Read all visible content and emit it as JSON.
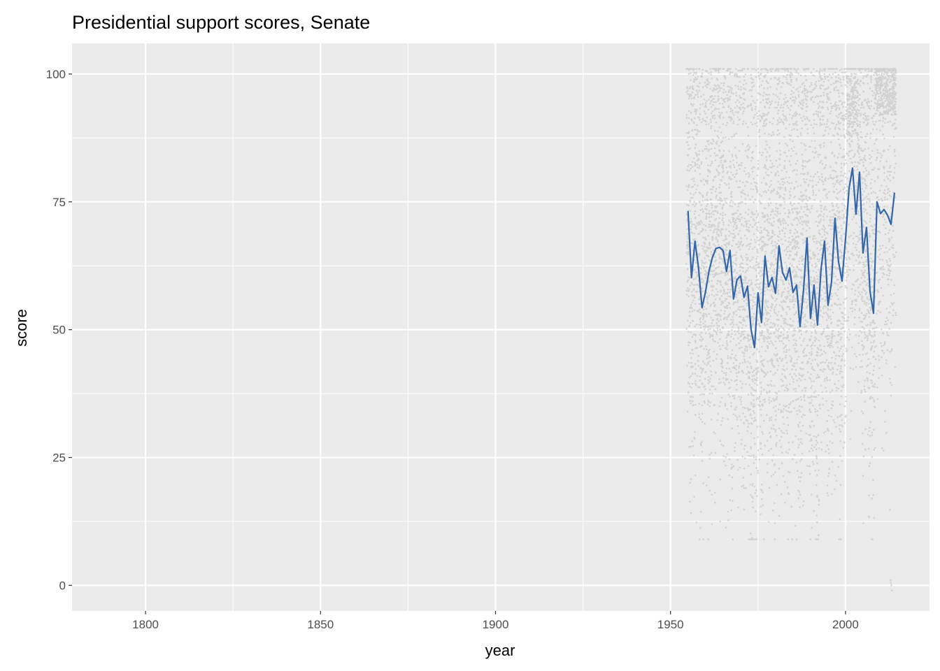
{
  "chart_data": {
    "type": "scatter",
    "title": "Presidential support scores, Senate",
    "xlabel": "year",
    "ylabel": "score",
    "xlim": [
      1779,
      2024
    ],
    "ylim": [
      -5,
      106
    ],
    "x_ticks": [
      1800,
      1850,
      1900,
      1950,
      2000
    ],
    "x_tick_labels": [
      "1800",
      "1850",
      "1900",
      "1950",
      "2000"
    ],
    "y_ticks": [
      0,
      25,
      50,
      75,
      100
    ],
    "y_tick_labels": [
      "0",
      "25",
      "50",
      "75",
      "100"
    ],
    "grid": true,
    "background": "#ebebeb",
    "colors": {
      "points": "#bdbdbd",
      "mean_line": "#3366aa",
      "grid": "#ffffff"
    },
    "points_summary": {
      "description_note": "Individual senator scores, one gray point per senator-year, spanning 1955-2014 with values roughly 0-100",
      "x_range": [
        1955,
        2014
      ],
      "y_range": [
        -1,
        101
      ]
    },
    "series": [
      {
        "x": [
          1955,
          1956,
          1957,
          1958,
          1959,
          1960,
          1961,
          1962,
          1963,
          1964,
          1965,
          1966,
          1967,
          1968,
          1969,
          1970,
          1971,
          1972,
          1973,
          1974,
          1975,
          1976,
          1977,
          1978,
          1979,
          1980,
          1981,
          1982,
          1983,
          1984,
          1985,
          1986,
          1987,
          1988,
          1989,
          1990,
          1991,
          1992,
          1993,
          1994,
          1995,
          1996,
          1997,
          1998,
          1999,
          2000,
          2001,
          2002,
          2003,
          2004,
          2005,
          2006,
          2007,
          2008,
          2009,
          2010,
          2011,
          2012,
          2013,
          2014
        ],
        "values": [
          73.2,
          60.2,
          67.3,
          62.1,
          54.3,
          57.4,
          61.5,
          64.2,
          65.9,
          66.1,
          65.5,
          61.4,
          65.5,
          56.0,
          59.8,
          60.5,
          56.3,
          58.5,
          50.1,
          46.5,
          57.2,
          51.4,
          64.4,
          58.4,
          60.2,
          57.1,
          66.4,
          61.2,
          59.7,
          62.1,
          57.3,
          58.7,
          50.6,
          57.7,
          67.9,
          52.2,
          58.7,
          50.9,
          61.8,
          67.3,
          54.8,
          59.3,
          71.8,
          63.3,
          59.5,
          67.7,
          77.6,
          81.6,
          72.6,
          80.8,
          65.0,
          70.0,
          57.5,
          53.2,
          75.0,
          72.7,
          73.5,
          72.4,
          70.6,
          76.8
        ]
      }
    ]
  }
}
